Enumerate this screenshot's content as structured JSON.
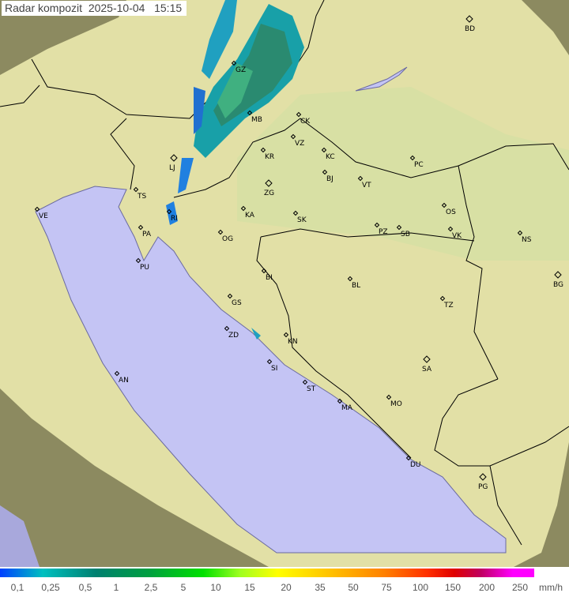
{
  "title": "Radar kompozit  2025-10-04   15:15",
  "legend": {
    "labels": [
      "0,1",
      "0,25",
      "0,5",
      "1",
      "2,5",
      "5",
      "10",
      "15",
      "20",
      "35",
      "50",
      "75",
      "100",
      "150",
      "200",
      "250"
    ],
    "unit": "mm/h"
  },
  "cities": [
    "GZ",
    "MB",
    "CK",
    "VZ",
    "KR",
    "KC",
    "PC",
    "LJ",
    "ZG",
    "BJ",
    "VT",
    "TS",
    "VE",
    "RI",
    "KA",
    "SK",
    "OS",
    "PA",
    "OG",
    "PZ",
    "SB",
    "VK",
    "NS",
    "PU",
    "BI",
    "BL",
    "BG",
    "GS",
    "TZ",
    "ZD",
    "KN",
    "SA",
    "SI",
    "AN",
    "ST",
    "MA",
    "MO",
    "DU",
    "PG",
    "BD"
  ],
  "colors": {
    "sea": "#c4c4f4",
    "land": "#e2e0a4",
    "outside": "#8c8a60"
  }
}
